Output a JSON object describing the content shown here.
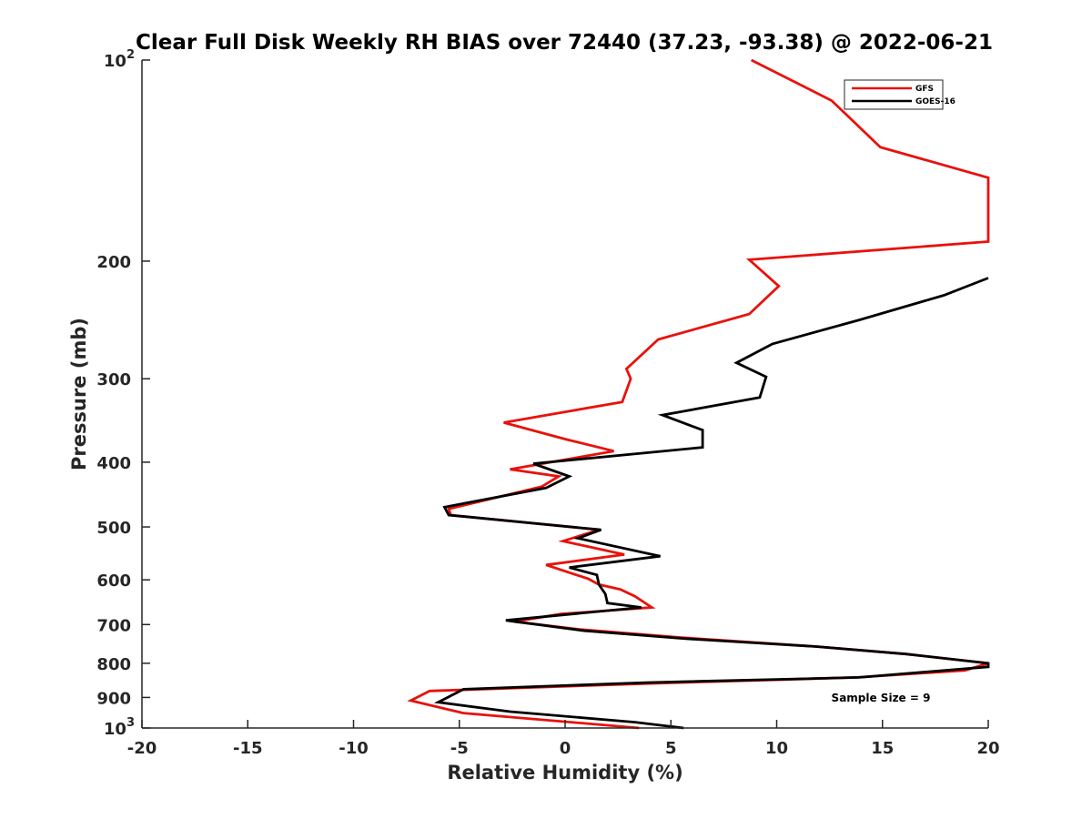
{
  "chart_data": {
    "type": "line",
    "title": "Clear Full Disk Weekly RH BIAS over 72440 (37.23, -93.38) @ 2022-06-21",
    "xlabel": "Relative Humidity (%)",
    "ylabel": "Pressure (mb)",
    "xlim": [
      -20,
      20
    ],
    "ylim": [
      100,
      1000
    ],
    "y_scale": "log",
    "y_reversed": true,
    "grid": false,
    "legend_position": "top-right",
    "x_ticks": [
      "-20",
      "-15",
      "-10",
      "-5",
      "0",
      "5",
      "10",
      "15",
      "20"
    ],
    "y_ticks": [
      {
        "value": 100,
        "label": "10",
        "exp": "2"
      },
      {
        "value": 200,
        "label": "200"
      },
      {
        "value": 300,
        "label": "300"
      },
      {
        "value": 400,
        "label": "400"
      },
      {
        "value": 500,
        "label": "500"
      },
      {
        "value": 600,
        "label": "600"
      },
      {
        "value": 700,
        "label": "700"
      },
      {
        "value": 800,
        "label": "800"
      },
      {
        "value": 900,
        "label": "900"
      },
      {
        "value": 1000,
        "label": "10",
        "exp": "3"
      }
    ],
    "series": [
      {
        "name": "GFS",
        "color": "#e8120c",
        "points": [
          [
            8.8,
            100
          ],
          [
            12.6,
            115
          ],
          [
            14.9,
            135
          ],
          [
            20,
            150
          ],
          [
            20,
            187
          ],
          [
            8.7,
            199
          ],
          [
            10.1,
            218
          ],
          [
            8.7,
            240
          ],
          [
            4.4,
            262
          ],
          [
            2.9,
            290
          ],
          [
            3.1,
            300
          ],
          [
            2.7,
            325
          ],
          [
            -2.9,
            349
          ],
          [
            0.1,
            370
          ],
          [
            2.3,
            385
          ],
          [
            -2.6,
            410
          ],
          [
            -0.3,
            420
          ],
          [
            -1.1,
            435
          ],
          [
            -5.5,
            470
          ],
          [
            -5.4,
            480
          ],
          [
            1.6,
            505
          ],
          [
            -0.1,
            525
          ],
          [
            2.8,
            550
          ],
          [
            -0.9,
            570
          ],
          [
            1.1,
            598
          ],
          [
            1.6,
            610
          ],
          [
            2.6,
            620
          ],
          [
            3.3,
            635
          ],
          [
            4.1,
            660
          ],
          [
            -0.2,
            675
          ],
          [
            -2.4,
            693
          ],
          [
            0.7,
            712
          ],
          [
            5.5,
            732
          ],
          [
            11.8,
            755
          ],
          [
            16.1,
            775
          ],
          [
            20,
            800
          ],
          [
            18.9,
            820
          ],
          [
            13.8,
            840
          ],
          [
            3.8,
            858
          ],
          [
            -6.4,
            880
          ],
          [
            -7.3,
            910
          ],
          [
            -4.8,
            950
          ],
          [
            3.5,
            1000
          ]
        ]
      },
      {
        "name": "GOES-16",
        "color": "#000000",
        "points": [
          [
            20,
            212
          ],
          [
            17.9,
            225
          ],
          [
            13.9,
            245
          ],
          [
            9.8,
            266
          ],
          [
            8.1,
            284
          ],
          [
            9.5,
            298
          ],
          [
            9.2,
            320
          ],
          [
            4.6,
            340
          ],
          [
            6.5,
            358
          ],
          [
            6.5,
            380
          ],
          [
            -1.5,
            402
          ],
          [
            0.2,
            420
          ],
          [
            -0.9,
            437
          ],
          [
            -5.7,
            467
          ],
          [
            -5.5,
            480
          ],
          [
            1.7,
            505
          ],
          [
            0.6,
            520
          ],
          [
            4.5,
            553
          ],
          [
            0.2,
            575
          ],
          [
            1.5,
            590
          ],
          [
            1.6,
            610
          ],
          [
            1.9,
            630
          ],
          [
            2.0,
            650
          ],
          [
            3.6,
            660
          ],
          [
            -2.8,
            690
          ],
          [
            0.9,
            715
          ],
          [
            5.7,
            735
          ],
          [
            11.8,
            755
          ],
          [
            16.1,
            775
          ],
          [
            20,
            800
          ],
          [
            20,
            810
          ],
          [
            13.9,
            840
          ],
          [
            3.8,
            855
          ],
          [
            -4.8,
            875
          ],
          [
            -6.0,
            915
          ],
          [
            -2.6,
            945
          ],
          [
            3.3,
            980
          ],
          [
            5.6,
            1000
          ]
        ]
      }
    ],
    "annotation": "Sample Size = 9"
  }
}
